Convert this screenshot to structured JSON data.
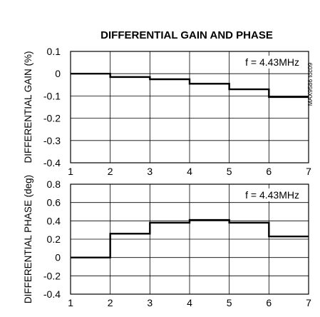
{
  "title": "DIFFERENTIAL GAIN AND PHASE",
  "figure_code": "MAX9586 toc09",
  "chart_data": [
    {
      "type": "line",
      "title": "",
      "xlabel": "",
      "ylabel": "DIFFERENTIAL GAIN (%)",
      "annotation": "f = 4.43MHz",
      "xlim": [
        1,
        7
      ],
      "ylim": [
        -0.4,
        0.1
      ],
      "x_ticks": [
        1,
        2,
        3,
        4,
        5,
        6,
        7
      ],
      "y_ticks": [
        0.1,
        0,
        -0.1,
        -0.2,
        -0.3,
        -0.4
      ],
      "y_tick_labels": [
        "0.1",
        "0",
        "-0.1",
        "-0.2",
        "-0.3",
        "-0.4"
      ],
      "grid": true,
      "step": true,
      "series": [
        {
          "steps": [
            {
              "x0": 1,
              "x1": 2,
              "y": 0.0
            },
            {
              "x0": 2,
              "x1": 3,
              "y": -0.015
            },
            {
              "x0": 3,
              "x1": 4,
              "y": -0.025
            },
            {
              "x0": 4,
              "x1": 5,
              "y": -0.045
            },
            {
              "x0": 5,
              "x1": 6,
              "y": -0.07
            },
            {
              "x0": 6,
              "x1": 7,
              "y": -0.105
            }
          ]
        }
      ]
    },
    {
      "type": "line",
      "title": "",
      "xlabel": "",
      "ylabel": "DIFFERENTIAL PHASE (deg)",
      "annotation": "f = 4.43MHz",
      "xlim": [
        1,
        7
      ],
      "ylim": [
        -0.4,
        0.8
      ],
      "x_ticks": [
        1,
        2,
        3,
        4,
        5,
        6,
        7
      ],
      "y_ticks": [
        0.8,
        0.6,
        0.4,
        0.2,
        0,
        -0.2,
        -0.4
      ],
      "y_tick_labels": [
        "0.8",
        "0.6",
        "0.4",
        "0.2",
        "0",
        "-0.2",
        "-0.4"
      ],
      "grid": true,
      "step": true,
      "series": [
        {
          "steps": [
            {
              "x0": 1,
              "x1": 2,
              "y": 0.0
            },
            {
              "x0": 2,
              "x1": 3,
              "y": 0.26
            },
            {
              "x0": 3,
              "x1": 4,
              "y": 0.38
            },
            {
              "x0": 4,
              "x1": 5,
              "y": 0.41
            },
            {
              "x0": 5,
              "x1": 6,
              "y": 0.38
            },
            {
              "x0": 6,
              "x1": 7,
              "y": 0.23
            }
          ]
        }
      ]
    }
  ]
}
